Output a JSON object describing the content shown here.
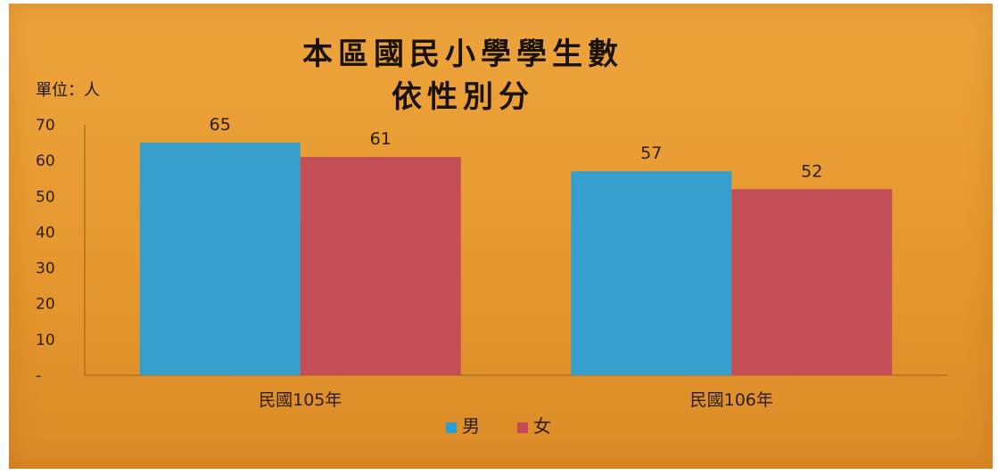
{
  "chart_data": {
    "type": "bar",
    "title": [
      "本區國民小學學生數",
      "依性別分"
    ],
    "unit_label": "單位：人",
    "categories": [
      "民國105年",
      "民國106年"
    ],
    "series": [
      {
        "name": "男",
        "values": [
          65,
          57
        ],
        "color": "#2f9fd3"
      },
      {
        "name": "女",
        "values": [
          61,
          52
        ],
        "color": "#c24b57"
      }
    ],
    "ylim": [
      0,
      70
    ],
    "y_ticks": [
      {
        "value": 0,
        "label": "-"
      },
      {
        "value": 10,
        "label": "10"
      },
      {
        "value": 20,
        "label": "20"
      },
      {
        "value": 30,
        "label": "30"
      },
      {
        "value": 40,
        "label": "40"
      },
      {
        "value": 50,
        "label": "50"
      },
      {
        "value": 60,
        "label": "60"
      },
      {
        "value": 70,
        "label": "70"
      }
    ],
    "grid": false,
    "legend_position": "bottom",
    "colors": {
      "background": "#e99f36"
    }
  }
}
